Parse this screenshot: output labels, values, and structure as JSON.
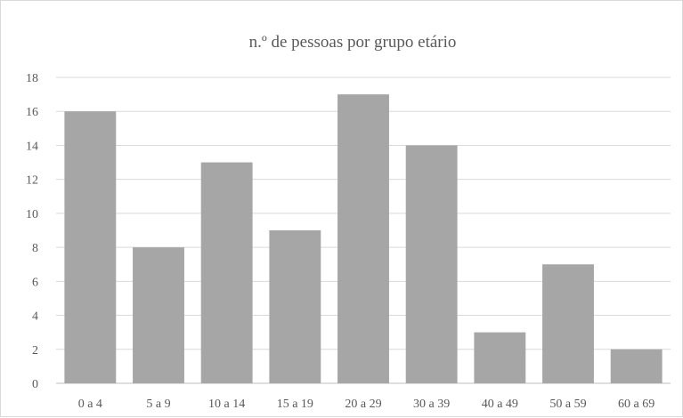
{
  "chart_data": {
    "type": "bar",
    "title": "n.º de pessoas por grupo etário",
    "xlabel": "",
    "ylabel": "",
    "categories": [
      "0 a 4",
      "5 a 9",
      "10 a 14",
      "15 a 19",
      "20 a 29",
      "30 a 39",
      "40 a 49",
      "50 a 59",
      "60 a 69"
    ],
    "values": [
      16,
      8,
      13,
      9,
      17,
      14,
      3,
      7,
      2
    ],
    "ylim": [
      0,
      18
    ],
    "yticks": [
      0,
      2,
      4,
      6,
      8,
      10,
      12,
      14,
      16,
      18
    ],
    "grid": true,
    "legend": "none",
    "bar_color": "#a6a6a6"
  }
}
